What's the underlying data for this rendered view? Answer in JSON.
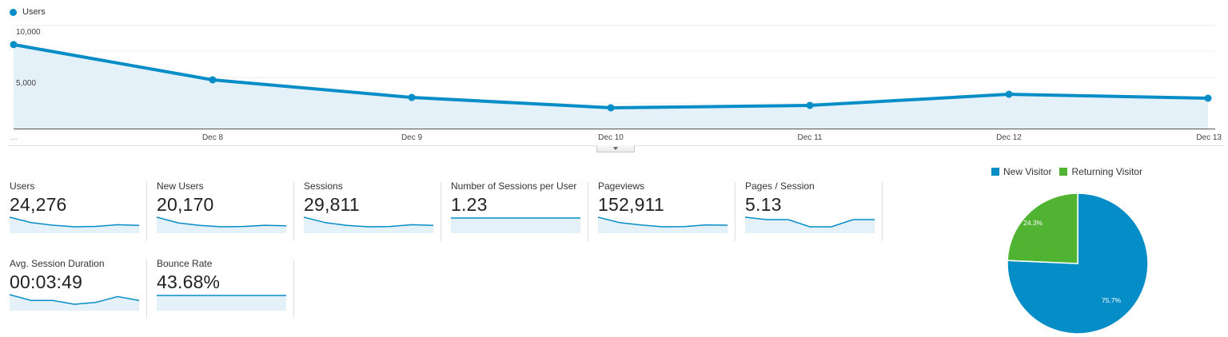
{
  "chart_data": [
    {
      "type": "area",
      "title": "",
      "legend": [
        "Users"
      ],
      "legend_position": "top-left",
      "xlabel": "",
      "ylabel": "",
      "ylim": [
        0,
        10000
      ],
      "yticks": [
        "10,000",
        "5,000"
      ],
      "grid": true,
      "categories": [
        "…",
        "Dec 8",
        "Dec 9",
        "Dec 10",
        "Dec 11",
        "Dec 12",
        "Dec 13"
      ],
      "series": [
        {
          "name": "Users",
          "color": "#058dc7",
          "values": [
            8150,
            4730,
            3020,
            2020,
            2250,
            3330,
            2950
          ]
        }
      ]
    },
    {
      "type": "pie",
      "title": "",
      "legend_position": "top",
      "labels": [
        "New Visitor",
        "Returning Visitor"
      ],
      "values": [
        75.7,
        24.3
      ],
      "colors": [
        "#058dc7",
        "#50b432"
      ],
      "value_labels": [
        "75.7%",
        "24.3%"
      ]
    }
  ],
  "legend": {
    "label": "Users",
    "color": "#058dc7"
  },
  "axis": {
    "y_ticks": [
      {
        "label": "10,000"
      },
      {
        "label": "5,000"
      }
    ],
    "x_ticks": [
      "…",
      "Dec 8",
      "Dec 9",
      "Dec 10",
      "Dec 11",
      "Dec 12",
      "Dec 13"
    ]
  },
  "metrics": [
    {
      "label": "Users",
      "value": "24,276",
      "spark": [
        8150,
        4730,
        3020,
        2020,
        2250,
        3330,
        2950
      ]
    },
    {
      "label": "New Users",
      "value": "20,170",
      "spark": [
        8,
        4.2,
        2.5,
        1.6,
        1.8,
        2.6,
        2.3
      ]
    },
    {
      "label": "Sessions",
      "value": "29,811",
      "spark": [
        8,
        4.6,
        2.9,
        2.0,
        2.2,
        3.3,
        2.9
      ]
    },
    {
      "label": "Number of Sessions per User",
      "value": "1.23",
      "spark": [
        1.23,
        1.23,
        1.22,
        1.22,
        1.22,
        1.23,
        1.23
      ]
    },
    {
      "label": "Pageviews",
      "value": "152,911",
      "spark": [
        8,
        4.6,
        3.0,
        1.9,
        2.0,
        3.1,
        2.9
      ]
    },
    {
      "label": "Pages / Session",
      "value": "5.13",
      "spark": [
        5.3,
        5.2,
        5.2,
        4.9,
        4.9,
        5.2,
        5.2
      ]
    },
    {
      "label": "Avg. Session Duration",
      "value": "00:03:49",
      "spark": [
        3.9,
        3.6,
        3.6,
        3.4,
        3.5,
        3.8,
        3.6
      ]
    },
    {
      "label": "Bounce Rate",
      "value": "43.68%",
      "spark": [
        43,
        43,
        43,
        44,
        44,
        43,
        43
      ]
    }
  ],
  "pie": {
    "legend": [
      {
        "label": "New Visitor",
        "color": "#058dc7"
      },
      {
        "label": "Returning Visitor",
        "color": "#50b432"
      }
    ],
    "slices": [
      {
        "label": "75.7%",
        "value": 75.7,
        "color": "#058dc7"
      },
      {
        "label": "24.3%",
        "value": 24.3,
        "color": "#50b432"
      }
    ]
  }
}
